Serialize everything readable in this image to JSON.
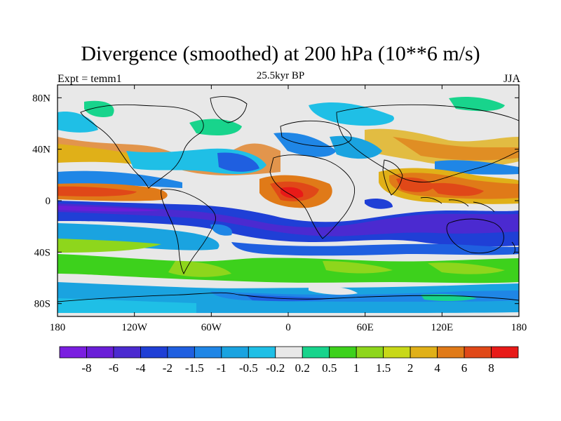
{
  "title": "Divergence (smoothed) at 200 hPa (10**6 m/s)",
  "subtitle_left": "Expt = temm1",
  "subtitle_center": "25.5kyr BP",
  "subtitle_right": "JJA",
  "map": {
    "projection": "cylindrical-equidistant",
    "lon_range": [
      -180,
      180
    ],
    "lat_range": [
      -90,
      90
    ],
    "x_ticks": [
      {
        "lon": -180,
        "label": "180"
      },
      {
        "lon": -120,
        "label": "120W"
      },
      {
        "lon": -60,
        "label": "60W"
      },
      {
        "lon": 0,
        "label": "0"
      },
      {
        "lon": 60,
        "label": "60E"
      },
      {
        "lon": 120,
        "label": "120E"
      },
      {
        "lon": 180,
        "label": "180"
      }
    ],
    "y_ticks": [
      {
        "lat": 80,
        "label": "80N"
      },
      {
        "lat": 40,
        "label": "40N"
      },
      {
        "lat": 0,
        "label": "0"
      },
      {
        "lat": -40,
        "label": "40S"
      },
      {
        "lat": -80,
        "label": "80S"
      }
    ],
    "fields": [
      {
        "name": "tropical-convergence-band",
        "lon": [
          -180,
          180
        ],
        "lat": [
          -28,
          -2
        ],
        "level": -4
      },
      {
        "name": "itcz-divergence-pacific",
        "lon": [
          -180,
          -80
        ],
        "lat": [
          0,
          14
        ],
        "level": 4
      },
      {
        "name": "africa-divergence",
        "lon": [
          -30,
          40
        ],
        "lat": [
          -5,
          15
        ],
        "level": 6
      },
      {
        "name": "asia-monsoon-divergence",
        "lon": [
          70,
          180
        ],
        "lat": [
          -5,
          25
        ],
        "level": 4
      },
      {
        "name": "midlat-convergence-north",
        "lon": [
          -140,
          -10
        ],
        "lat": [
          20,
          40
        ],
        "level": -1.5
      },
      {
        "name": "southern-ocean-band",
        "lon": [
          -180,
          180
        ],
        "lat": [
          -58,
          -42
        ],
        "level": 1
      }
    ]
  },
  "colorbar": {
    "colors": [
      "#7a1ee0",
      "#6a1ed8",
      "#4b2ad0",
      "#1f3fd6",
      "#1f5fe0",
      "#1f86e6",
      "#1aa3e0",
      "#1fbfe6",
      "#e8e8e8",
      "#18d48c",
      "#3dd11c",
      "#8ed61c",
      "#c8d818",
      "#e0b018",
      "#e07a18",
      "#e04818",
      "#e81a18"
    ],
    "labels": [
      "-8",
      "-6",
      "-4",
      "-2",
      "-1.5",
      "-1",
      "-0.5",
      "-0.2",
      "0.2",
      "0.5",
      "1",
      "1.5",
      "2",
      "4",
      "6",
      "8"
    ]
  }
}
